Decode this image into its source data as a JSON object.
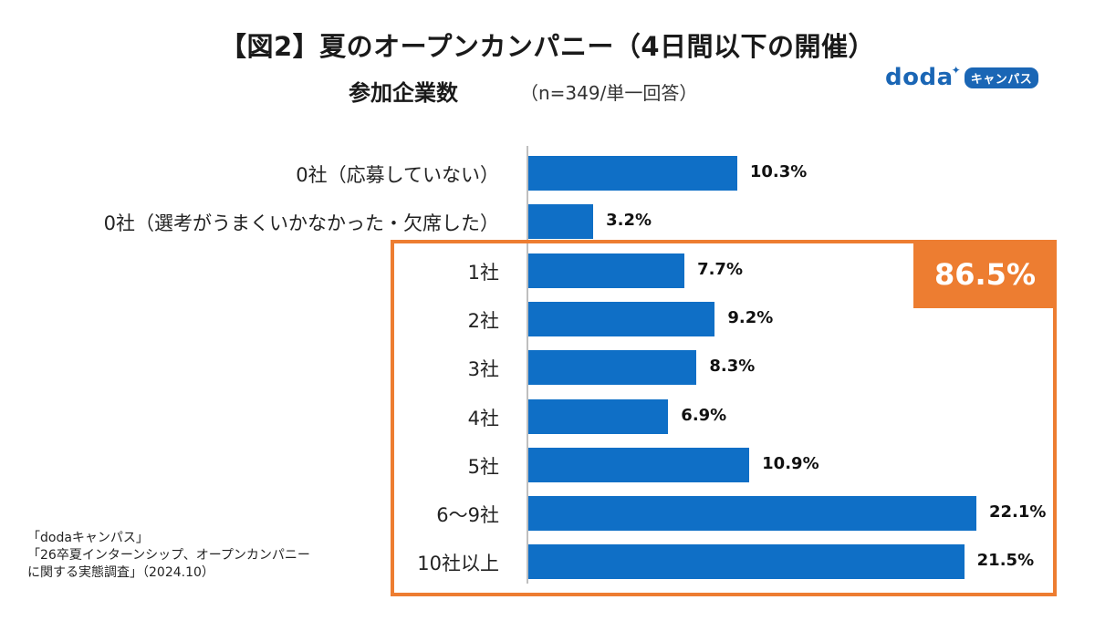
{
  "header": {
    "title": "【図2】夏のオープンカンパニー（4日間以下の開催）",
    "subtitle": "参加企業数",
    "sample_note": "（n=349/単一回答）"
  },
  "logo": {
    "wordmark": "doda",
    "badge": "キャンパス",
    "color": "#1a66b5"
  },
  "highlight": {
    "label": "86.5%",
    "color": "#ed7d31"
  },
  "source": {
    "lines": [
      "「dodaキャンパス」",
      "「26卒夏インターンシップ、オープンカンパニー",
      "に関する実態調査」（2024.10）"
    ]
  },
  "chart_data": {
    "type": "bar",
    "orientation": "horizontal",
    "title": "参加企業数",
    "xlabel": "",
    "ylabel": "",
    "xlim": [
      0,
      22.1
    ],
    "grid": false,
    "bar_color": "#0f6fc6",
    "categories": [
      "0社（応募していない）",
      "0社（選考がうまくいかなかった・欠席した）",
      "1社",
      "2社",
      "3社",
      "4社",
      "5社",
      "6〜9社",
      "10社以上"
    ],
    "values": [
      10.3,
      3.2,
      7.7,
      9.2,
      8.3,
      6.9,
      10.9,
      22.1,
      21.5
    ],
    "value_labels": [
      "10.3%",
      "3.2%",
      "7.7%",
      "9.2%",
      "8.3%",
      "6.9%",
      "10.9%",
      "22.1%",
      "21.5%"
    ]
  }
}
